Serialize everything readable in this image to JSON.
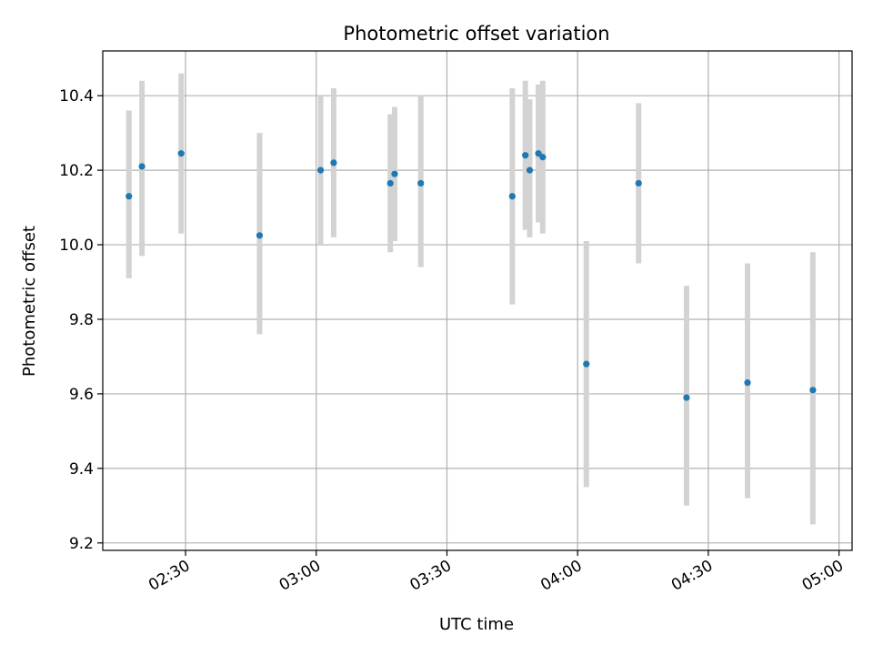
{
  "chart_data": {
    "type": "scatter",
    "title": "Photometric offset variation",
    "xlabel": "UTC time",
    "ylabel": "Photometric offset",
    "x_ticks": [
      "02:30",
      "03:00",
      "03:30",
      "04:00",
      "04:30",
      "05:00"
    ],
    "y_ticks": [
      "9.2",
      "9.4",
      "9.6",
      "9.8",
      "10.0",
      "10.2",
      "10.4"
    ],
    "xlim": [
      "02:11",
      "05:03"
    ],
    "ylim": [
      9.18,
      10.52
    ],
    "grid": true,
    "colors": {
      "point": "#1f77b4",
      "errorbar": "#d3d3d3",
      "grid": "#b0b0b0"
    },
    "series": [
      {
        "points": [
          {
            "x": "02:17",
            "y": 10.13,
            "ylow": 9.91,
            "yhigh": 10.36
          },
          {
            "x": "02:20",
            "y": 10.21,
            "ylow": 9.97,
            "yhigh": 10.44
          },
          {
            "x": "02:29",
            "y": 10.245,
            "ylow": 10.03,
            "yhigh": 10.46
          },
          {
            "x": "02:47",
            "y": 10.025,
            "ylow": 9.76,
            "yhigh": 10.3
          },
          {
            "x": "03:01",
            "y": 10.2,
            "ylow": 10.0,
            "yhigh": 10.4
          },
          {
            "x": "03:04",
            "y": 10.22,
            "ylow": 10.02,
            "yhigh": 10.42
          },
          {
            "x": "03:17",
            "y": 10.165,
            "ylow": 9.98,
            "yhigh": 10.35
          },
          {
            "x": "03:18",
            "y": 10.19,
            "ylow": 10.01,
            "yhigh": 10.37
          },
          {
            "x": "03:24",
            "y": 10.165,
            "ylow": 9.94,
            "yhigh": 10.4
          },
          {
            "x": "03:45",
            "y": 10.13,
            "ylow": 9.84,
            "yhigh": 10.42
          },
          {
            "x": "03:48",
            "y": 10.24,
            "ylow": 10.04,
            "yhigh": 10.44
          },
          {
            "x": "03:49",
            "y": 10.2,
            "ylow": 10.02,
            "yhigh": 10.39
          },
          {
            "x": "03:51",
            "y": 10.245,
            "ylow": 10.06,
            "yhigh": 10.43
          },
          {
            "x": "03:52",
            "y": 10.235,
            "ylow": 10.03,
            "yhigh": 10.44
          },
          {
            "x": "04:02",
            "y": 9.68,
            "ylow": 9.35,
            "yhigh": 10.01
          },
          {
            "x": "04:14",
            "y": 10.165,
            "ylow": 9.95,
            "yhigh": 10.38
          },
          {
            "x": "04:25",
            "y": 9.59,
            "ylow": 9.3,
            "yhigh": 9.89
          },
          {
            "x": "04:39",
            "y": 9.63,
            "ylow": 9.32,
            "yhigh": 9.95
          },
          {
            "x": "04:54",
            "y": 9.61,
            "ylow": 9.25,
            "yhigh": 9.98
          }
        ]
      }
    ]
  }
}
